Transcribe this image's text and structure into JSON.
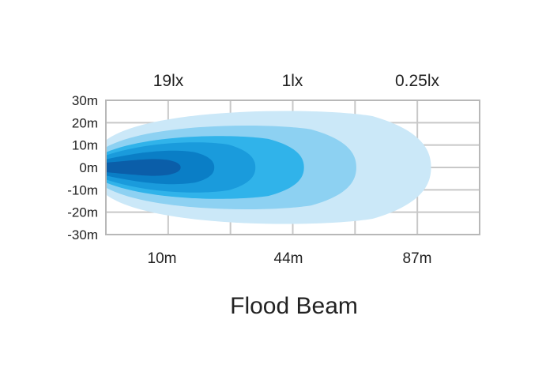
{
  "chart_data": {
    "type": "area",
    "title": "Flood Beam",
    "y_tick_labels": [
      "30m",
      "20m",
      "10m",
      "0m",
      "-10m",
      "-20m",
      "-30m"
    ],
    "y_values": [
      30,
      20,
      10,
      0,
      -10,
      -20,
      -30
    ],
    "ylim": [
      -30,
      30
    ],
    "x_tick_labels": [
      "10m",
      "44m",
      "87m"
    ],
    "lux_labels": [
      "19lx",
      "1lx",
      "0.25lx"
    ],
    "grid": true,
    "beam_contours": [
      {
        "color": "#cbe8f8",
        "half_width": 27,
        "reach_fraction": 0.87
      },
      {
        "color": "#8dd1f2",
        "half_width": 20,
        "reach_fraction": 0.67
      },
      {
        "color": "#30b3ea",
        "half_width": 15,
        "reach_fraction": 0.53
      },
      {
        "color": "#1a9bdc",
        "half_width": 12,
        "reach_fraction": 0.4
      },
      {
        "color": "#0a7ec6",
        "half_width": 8,
        "reach_fraction": 0.29
      },
      {
        "color": "#0b5ea9",
        "half_width": 4,
        "reach_fraction": 0.2
      }
    ],
    "colors": {
      "grid": "#c8c8c8",
      "frame": "#b8b8b8"
    }
  }
}
